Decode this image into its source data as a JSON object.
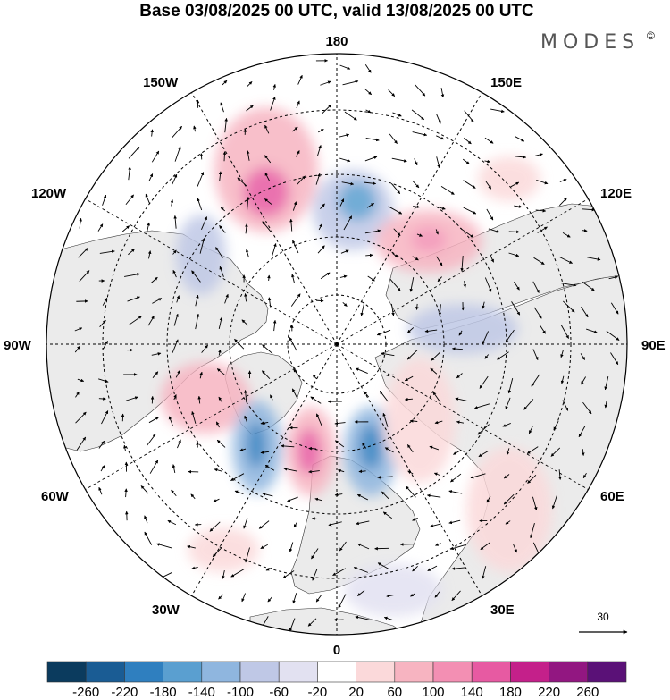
{
  "title": "Base 03/08/2025 00 UTC, valid 13/08/2025 00 UTC",
  "brand": {
    "text": "MODES",
    "mark": "©"
  },
  "longitude_labels": {
    "top": "180",
    "bottom": "0",
    "left": "90W",
    "right": "90E",
    "upper_left_1": "150W",
    "upper_left_2": "120W",
    "upper_right_1": "150E",
    "upper_right_2": "120E",
    "lower_left_1": "60W",
    "lower_left_2": "30W",
    "lower_right_1": "60E",
    "lower_right_2": "30E"
  },
  "reference_vector": {
    "label": "30"
  },
  "colorbar": {
    "colors": [
      "#0b3b5e",
      "#1a5c94",
      "#2f7fbf",
      "#5a9fd0",
      "#8fb6df",
      "#bfc8e6",
      "#e2e1f1",
      "#ffffff",
      "#fbd9da",
      "#f7b4c1",
      "#f38fb3",
      "#e75aa2",
      "#c4208a",
      "#921781",
      "#5a1177"
    ],
    "labels": [
      "-260",
      "-220",
      "-180",
      "-140",
      "-100",
      "-60",
      "-20",
      "20",
      "60",
      "100",
      "140",
      "180",
      "220",
      "260"
    ]
  },
  "colors": {
    "land": "#ebebeb",
    "ocean": "#ffffff",
    "positive": "#f4b6c0",
    "negative": "#b9c0e0"
  },
  "chart_data": {
    "type": "polar-stereographic anomaly map",
    "projection": "north polar stereographic",
    "anomaly_centers": [
      {
        "sign": "positive",
        "value": 180,
        "lon": -165,
        "lat": 58
      },
      {
        "sign": "negative",
        "value": -140,
        "lon": 170,
        "lat": 65
      },
      {
        "sign": "positive",
        "value": 140,
        "lon": 125,
        "lat": 60
      },
      {
        "sign": "negative",
        "value": -100,
        "lon": 100,
        "lat": 72
      },
      {
        "sign": "positive",
        "value": 140,
        "lon": -70,
        "lat": 60
      },
      {
        "sign": "negative",
        "value": -180,
        "lon": -25,
        "lat": 60
      },
      {
        "sign": "positive",
        "value": 180,
        "lon": -5,
        "lat": 62
      },
      {
        "sign": "negative",
        "value": -180,
        "lon": 15,
        "lat": 62
      },
      {
        "sign": "positive",
        "value": 100,
        "lon": 45,
        "lat": 60
      },
      {
        "sign": "negative",
        "value": -100,
        "lon": -125,
        "lat": 60
      }
    ]
  }
}
